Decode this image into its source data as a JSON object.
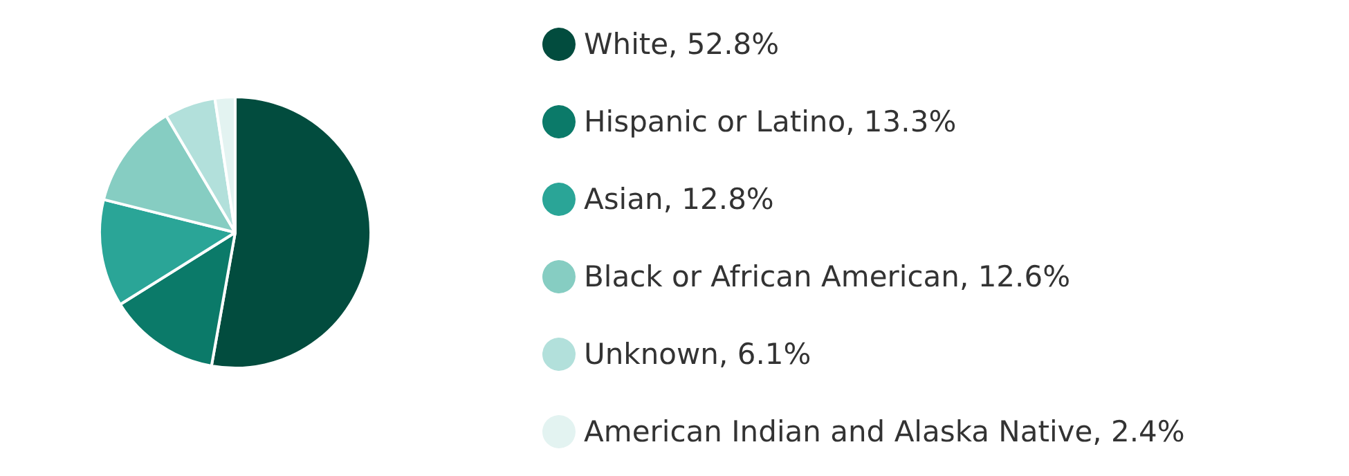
{
  "chart_data": {
    "type": "pie",
    "categories": [
      "White, 52.8%",
      "Hispanic or Latino, 13.3%",
      "Asian, 12.8%",
      "Black or African American, 12.6%",
      "Unknown, 6.1%",
      "American Indian and Alaska Native, 2.4%"
    ],
    "values": [
      52.8,
      13.3,
      12.8,
      12.6,
      6.1,
      2.4
    ],
    "colors": [
      "#024c3e",
      "#0b7a69",
      "#2aa597",
      "#86cdc2",
      "#b2e0db",
      "#e3f3f1"
    ],
    "legend": "right"
  }
}
